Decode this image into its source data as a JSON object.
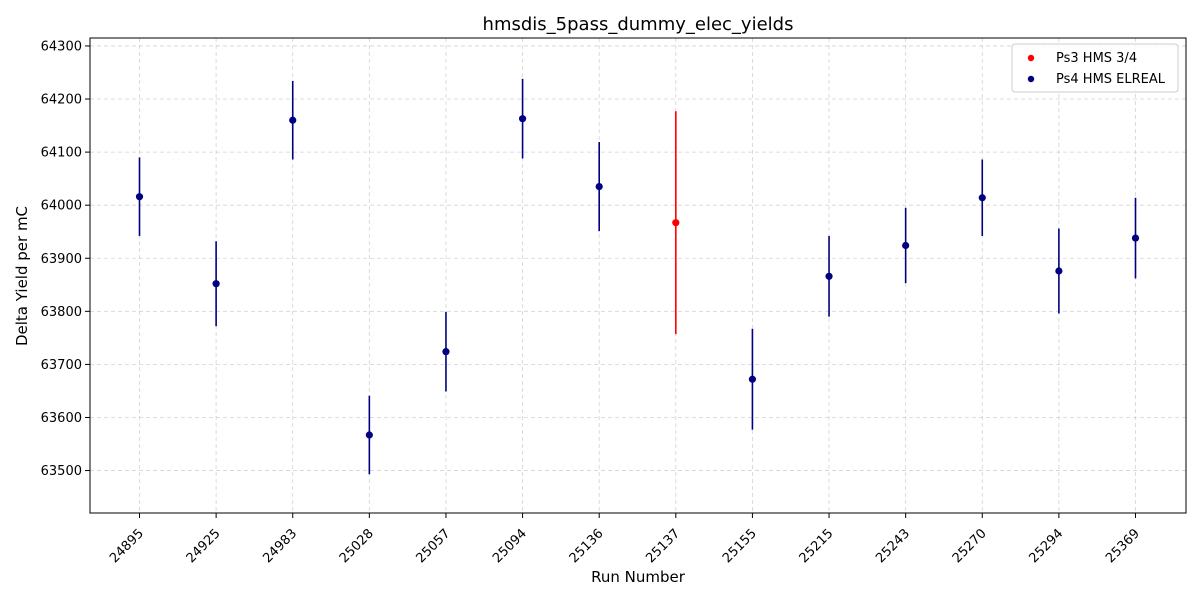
{
  "chart_data": {
    "type": "scatter",
    "title": "hmsdis_5pass_dummy_elec_yields",
    "xlabel": "Run Number",
    "ylabel": "Delta Yield per mC",
    "categories": [
      "24895",
      "24925",
      "24983",
      "25028",
      "25057",
      "25094",
      "25136",
      "25137",
      "25155",
      "25215",
      "25243",
      "25270",
      "25294",
      "25369"
    ],
    "ylim": [
      63420,
      64315
    ],
    "yticks": [
      63500,
      63600,
      63700,
      63800,
      63900,
      64000,
      64100,
      64200,
      64300
    ],
    "grid": true,
    "legend_position": "top-right",
    "series": [
      {
        "name": "Ps3 HMS 3/4",
        "color": "#ff0000",
        "points": [
          {
            "x": "25137",
            "y": 63967,
            "err": 210
          }
        ]
      },
      {
        "name": "Ps4 HMS ELREAL",
        "color": "#000080",
        "points": [
          {
            "x": "24895",
            "y": 64016,
            "err": 74
          },
          {
            "x": "24925",
            "y": 63852,
            "err": 80
          },
          {
            "x": "24983",
            "y": 64160,
            "err": 74
          },
          {
            "x": "25028",
            "y": 63567,
            "err": 74
          },
          {
            "x": "25057",
            "y": 63724,
            "err": 75
          },
          {
            "x": "25094",
            "y": 64163,
            "err": 75
          },
          {
            "x": "25136",
            "y": 64035,
            "err": 84
          },
          {
            "x": "25155",
            "y": 63672,
            "err": 95
          },
          {
            "x": "25215",
            "y": 63866,
            "err": 76
          },
          {
            "x": "25243",
            "y": 63924,
            "err": 71
          },
          {
            "x": "25270",
            "y": 64014,
            "err": 72
          },
          {
            "x": "25294",
            "y": 63876,
            "err": 80
          },
          {
            "x": "25369",
            "y": 63938,
            "err": 76
          }
        ]
      }
    ]
  }
}
